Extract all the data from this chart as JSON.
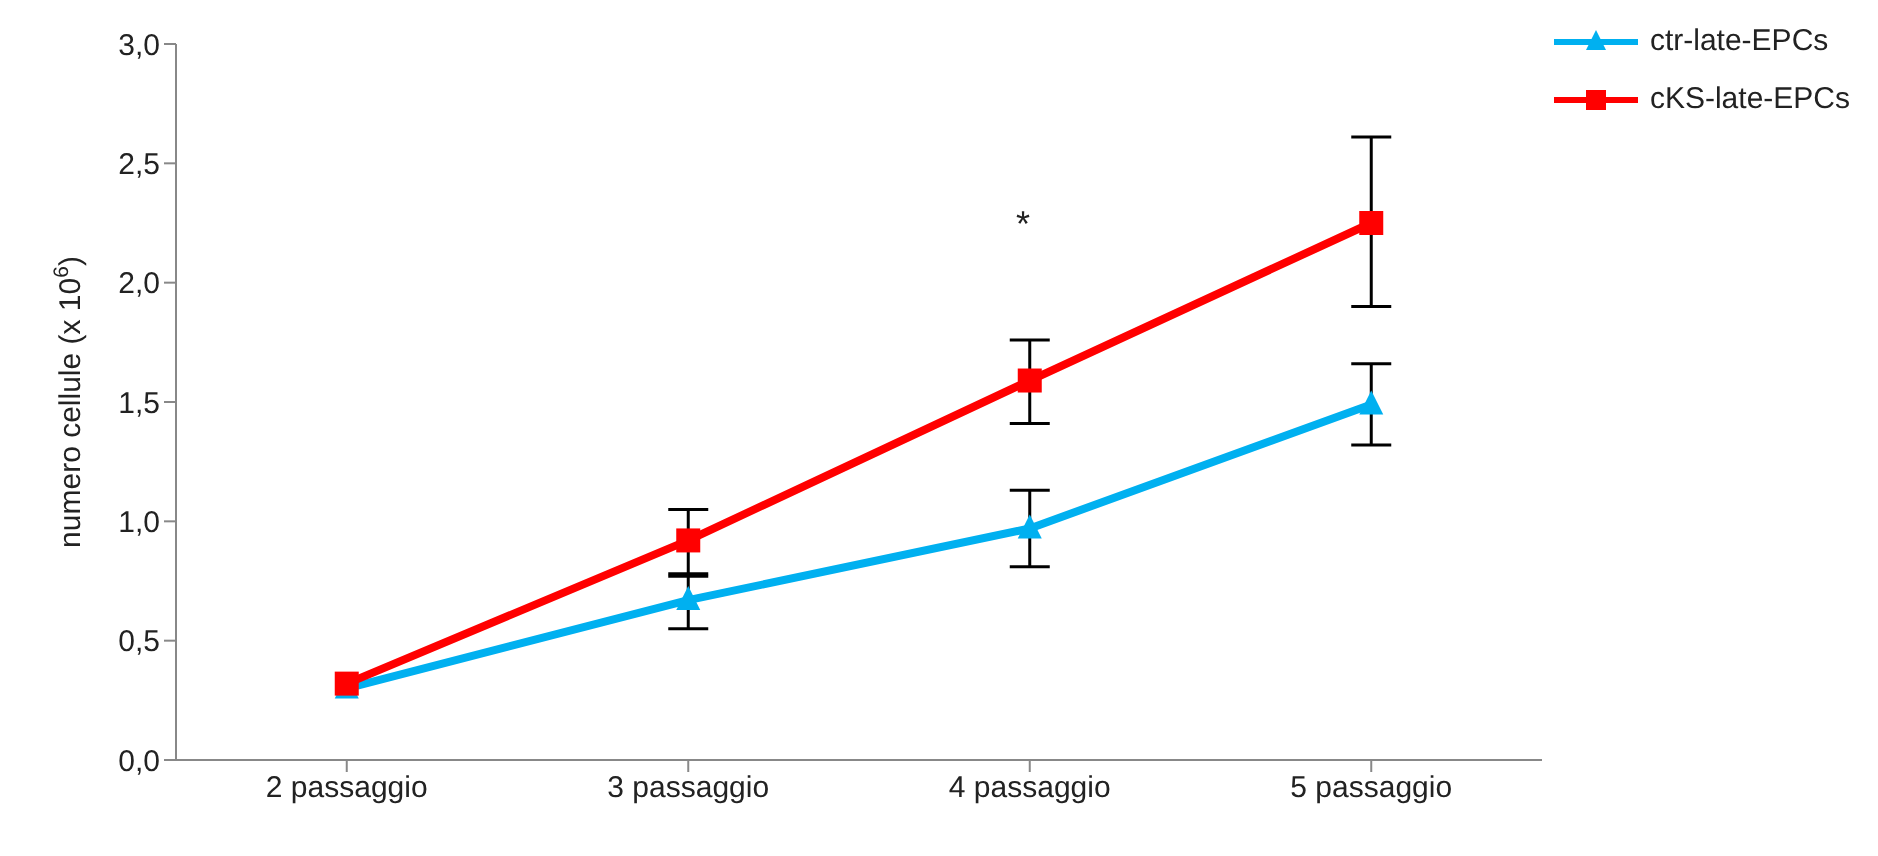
{
  "chart_data": {
    "type": "line",
    "ylabel": "numero cellule (x 10$^{6}$)",
    "categories": [
      "2 passaggio",
      "3 passaggio",
      "4 passaggio",
      "5 passaggio"
    ],
    "series": [
      {
        "name": "ctr-late-EPCs",
        "color": "#00b0f0",
        "marker": "triangle",
        "values": [
          0.3,
          0.67,
          0.97,
          1.49
        ],
        "errors": [
          null,
          [
            0.55,
            0.78
          ],
          [
            0.81,
            1.13
          ],
          [
            1.32,
            1.66
          ]
        ]
      },
      {
        "name": "cKS-late-EPCs",
        "color": "#ff0000",
        "marker": "square",
        "values": [
          0.32,
          0.92,
          1.59,
          2.25
        ],
        "errors": [
          null,
          [
            0.77,
            1.05
          ],
          [
            1.41,
            1.76
          ],
          [
            1.9,
            2.61
          ]
        ]
      }
    ],
    "ylim": [
      0,
      3
    ],
    "yticks": [
      {
        "value": 0,
        "label": "0,0"
      },
      {
        "value": 0.5,
        "label": "0,5"
      },
      {
        "value": 1,
        "label": "1,0"
      },
      {
        "value": 1.5,
        "label": "1,5"
      },
      {
        "value": 2,
        "label": "2,0"
      },
      {
        "value": 2.5,
        "label": "2,5"
      },
      {
        "value": 3,
        "label": "3,0"
      }
    ],
    "annotations": [
      "*"
    ],
    "grid": false,
    "legend": "top right",
    "line_style": "solid"
  }
}
